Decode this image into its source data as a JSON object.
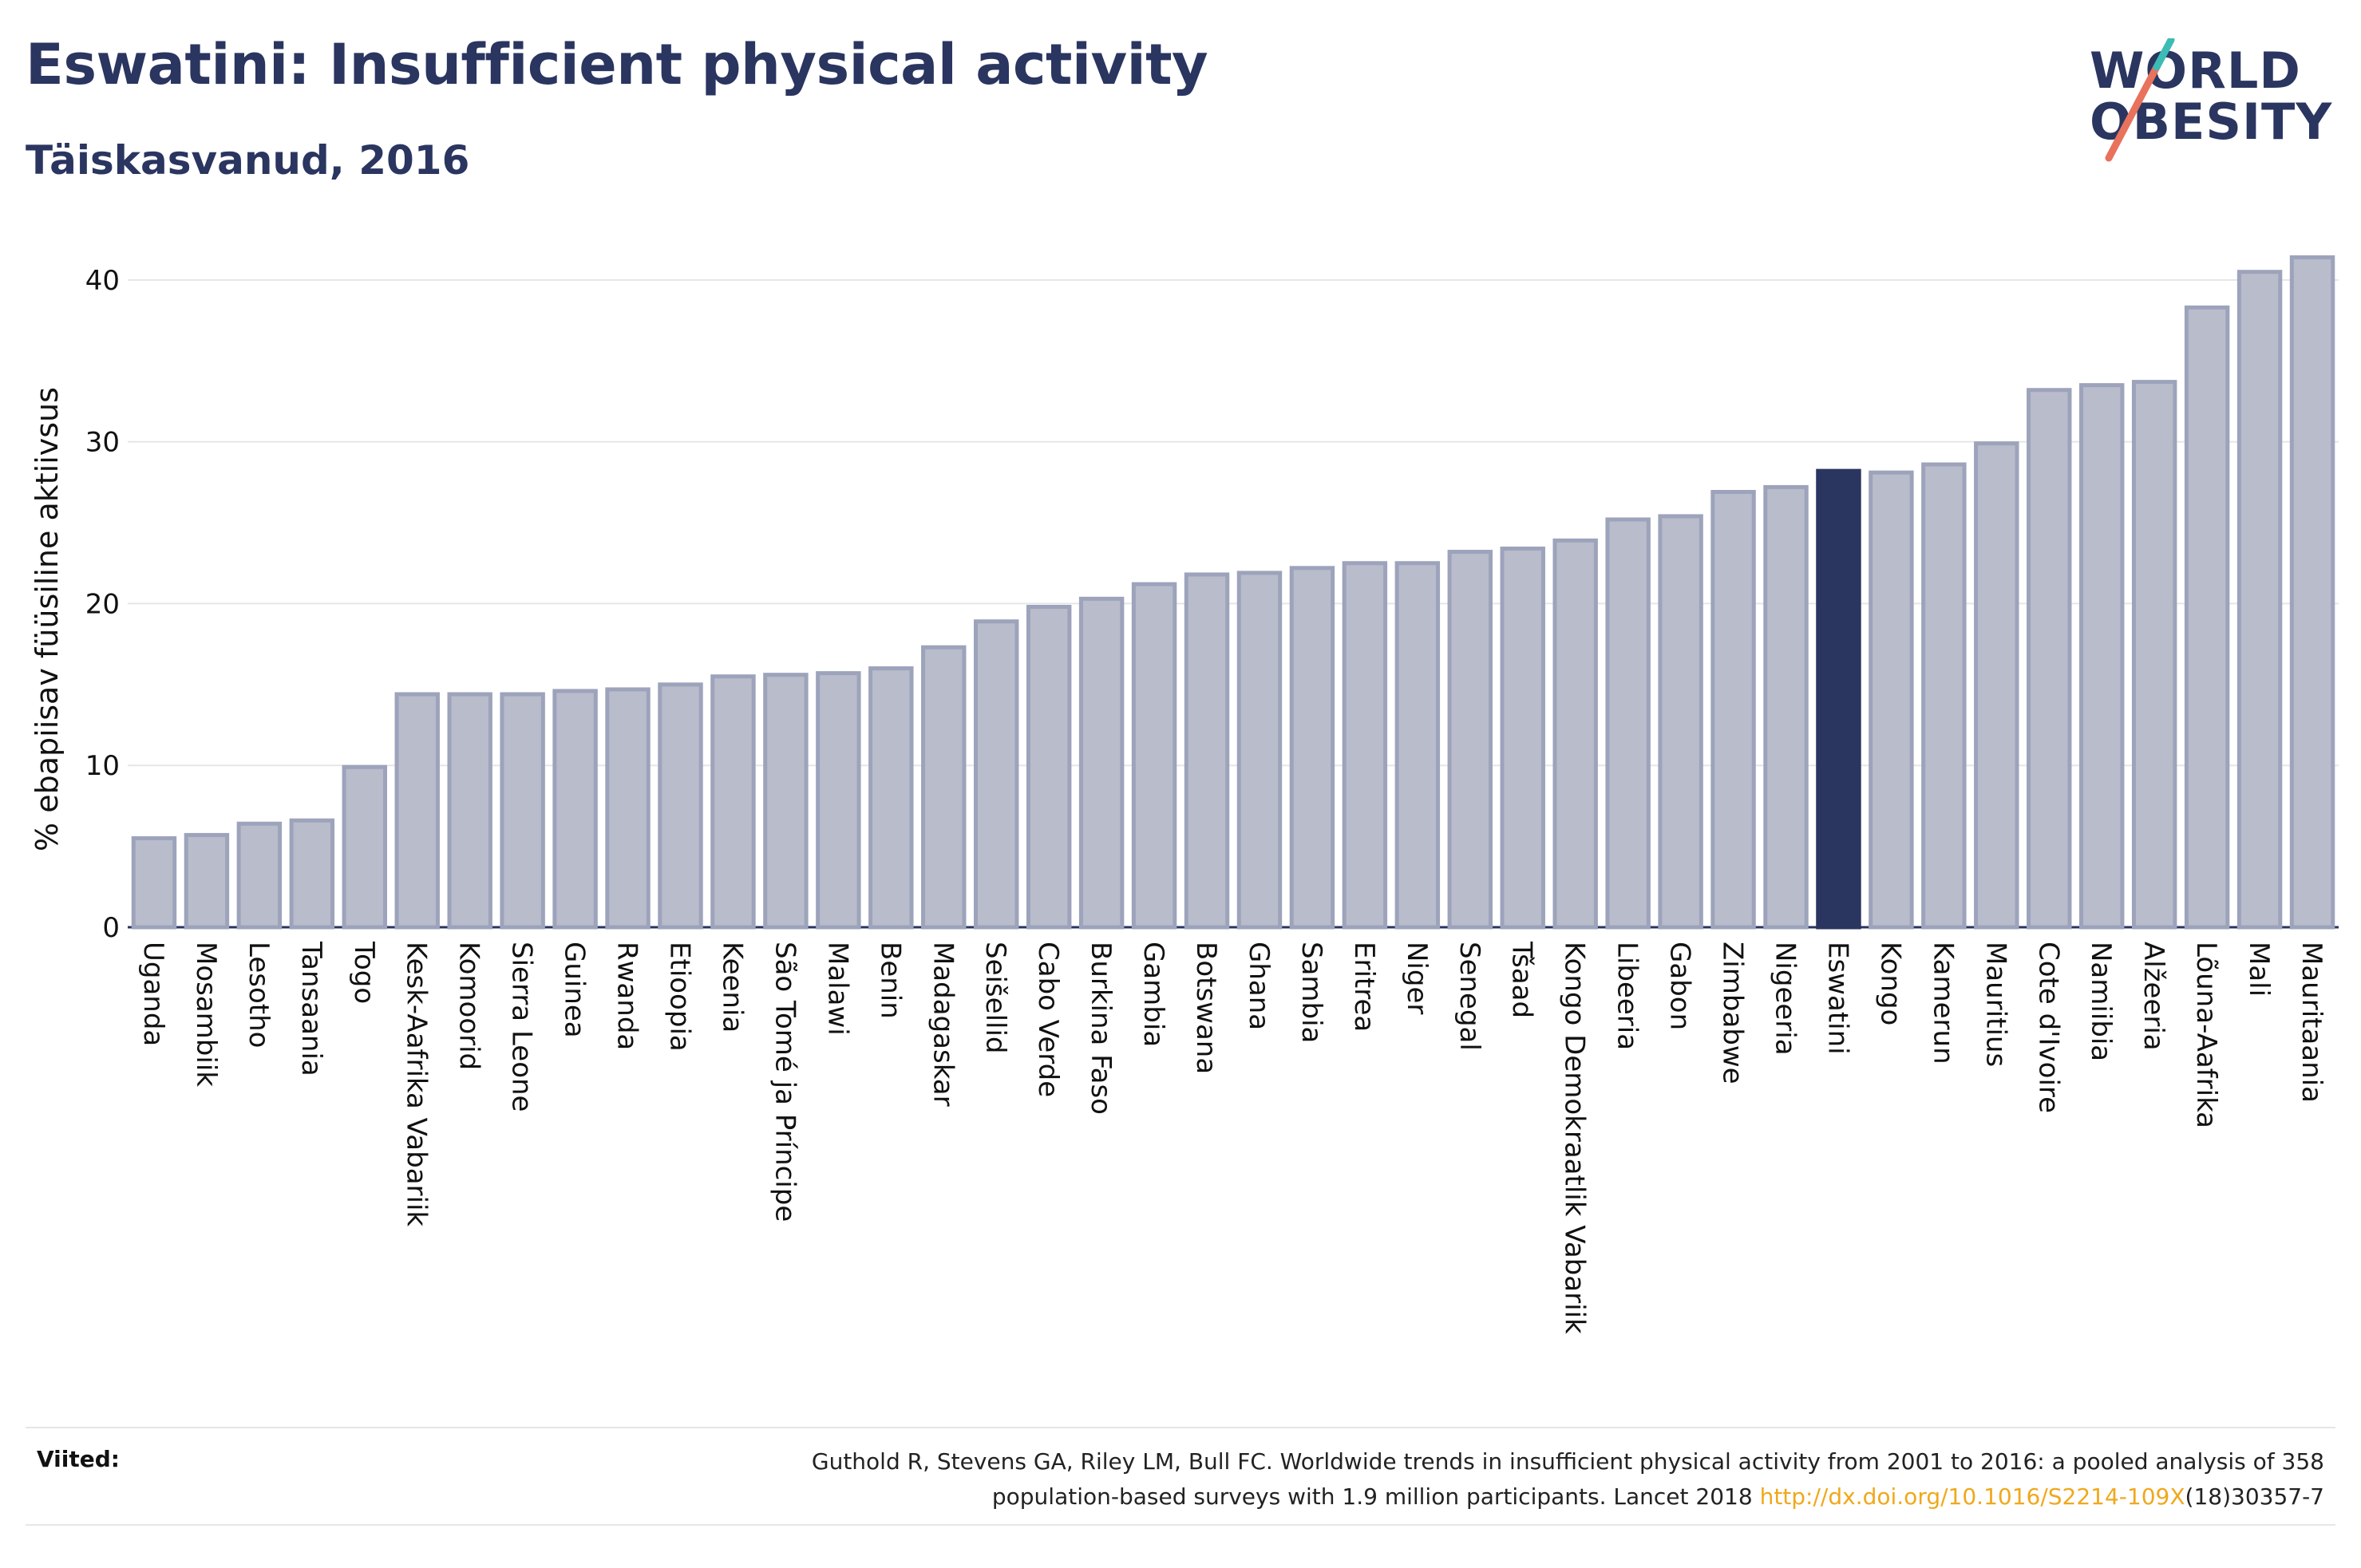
{
  "header": {
    "title": "Eswatini: Insufficient physical activity",
    "subtitle": "Täiskasvanud, 2016"
  },
  "logo": {
    "line1": "WORLD",
    "line2": "OBESITY",
    "brand_colors": [
      "#2a3560",
      "#e8725c",
      "#3cbcb4"
    ]
  },
  "chart_data": {
    "type": "bar",
    "title": "",
    "xlabel": "",
    "ylabel": "% ebapiisav füüsiline aktiivsus",
    "ylim": [
      0,
      43
    ],
    "yticks": [
      0,
      10,
      20,
      30,
      40
    ],
    "grid": true,
    "highlight_category": "Eswatini",
    "colors": {
      "bar": "#b8bccb",
      "bar_border": "#9da3bb",
      "highlight": "#2a3560",
      "grid": "#e6e6ea"
    },
    "categories": [
      "Uganda",
      "Mosambiik",
      "Lesotho",
      "Tansaania",
      "Togo",
      "Kesk-Aafrika Vabariik",
      "Komoorid",
      "Sierra Leone",
      "Guinea",
      "Rwanda",
      "Etioopia",
      "Keenia",
      "São Tomé ja Príncipe",
      "Malawi",
      "Benin",
      "Madagaskar",
      "Seišellid",
      "Cabo Verde",
      "Burkina Faso",
      "Gambia",
      "Botswana",
      "Ghana",
      "Sambia",
      "Eritrea",
      "Niger",
      "Senegal",
      "Tšaad",
      "Kongo Demokraatlik Vabariik",
      "Libeeria",
      "Gabon",
      "Zimbabwe",
      "Nigeeria",
      "Eswatini",
      "Kongo",
      "Kamerun",
      "Mauritius",
      "Cote d'Ivoire",
      "Namiibia",
      "Alžeeria",
      "Lõuna-Aafrika",
      "Mali",
      "Mauritaania"
    ],
    "values": [
      5.5,
      5.7,
      6.4,
      6.6,
      9.9,
      14.4,
      14.4,
      14.4,
      14.6,
      14.7,
      15.0,
      15.5,
      15.6,
      15.7,
      16.0,
      17.3,
      18.9,
      19.8,
      20.3,
      21.2,
      21.8,
      21.9,
      22.2,
      22.5,
      22.5,
      23.2,
      23.4,
      23.9,
      25.2,
      25.4,
      26.9,
      27.2,
      28.2,
      28.1,
      28.6,
      29.9,
      33.2,
      33.5,
      33.7,
      38.3,
      40.5,
      41.4
    ]
  },
  "references": {
    "label": "Viited:",
    "line1": "Guthold R, Stevens GA, Riley LM, Bull FC. Worldwide trends in insufficient physical activity from 2001 to 2016: a pooled analysis of 358",
    "line2_pre": "population-based surveys with 1.9 million participants. Lancet 2018 ",
    "link": "http://dx.doi.org/10.1016/S2214-109X",
    "line2_post": "(18)30357-7"
  }
}
